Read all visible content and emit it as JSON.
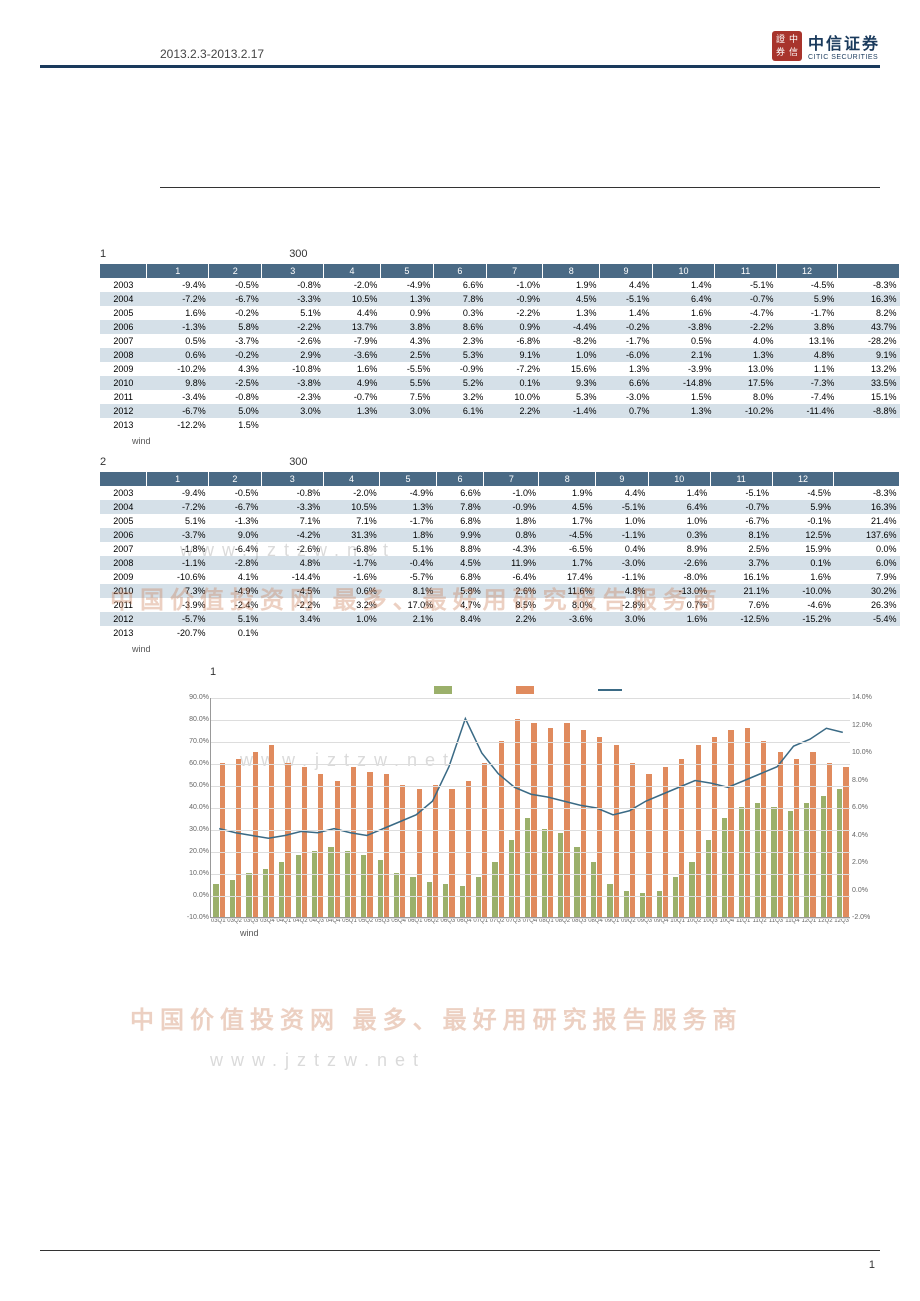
{
  "header": {
    "dateRange": "2013.2.3-2013.2.17",
    "logoCN": "中信证券",
    "logoEN": "CITIC SECURITIES",
    "seal": [
      "證",
      "中",
      "券",
      "信"
    ]
  },
  "table1": {
    "title": "1",
    "subtitle": "300",
    "columns": [
      "",
      "1",
      "2",
      "3",
      "4",
      "5",
      "6",
      "7",
      "8",
      "9",
      "10",
      "11",
      "12",
      ""
    ],
    "rows": [
      [
        "2003",
        "-9.4%",
        "-0.5%",
        "-0.8%",
        "-2.0%",
        "-4.9%",
        "6.6%",
        "-1.0%",
        "1.9%",
        "4.4%",
        "1.4%",
        "-5.1%",
        "-4.5%",
        "-8.3%"
      ],
      [
        "2004",
        "-7.2%",
        "-6.7%",
        "-3.3%",
        "10.5%",
        "1.3%",
        "7.8%",
        "-0.9%",
        "4.5%",
        "-5.1%",
        "6.4%",
        "-0.7%",
        "5.9%",
        "16.3%"
      ],
      [
        "2005",
        "1.6%",
        "-0.2%",
        "5.1%",
        "4.4%",
        "0.9%",
        "0.3%",
        "-2.2%",
        "1.3%",
        "1.4%",
        "1.6%",
        "-4.7%",
        "-1.7%",
        "8.2%"
      ],
      [
        "2006",
        "-1.3%",
        "5.8%",
        "-2.2%",
        "13.7%",
        "3.8%",
        "8.6%",
        "0.9%",
        "-4.4%",
        "-0.2%",
        "-3.8%",
        "-2.2%",
        "3.8%",
        "43.7%"
      ],
      [
        "2007",
        "0.5%",
        "-3.7%",
        "-2.6%",
        "-7.9%",
        "4.3%",
        "2.3%",
        "-6.8%",
        "-8.2%",
        "-1.7%",
        "0.5%",
        "4.0%",
        "13.1%",
        "-28.2%"
      ],
      [
        "2008",
        "0.6%",
        "-0.2%",
        "2.9%",
        "-3.6%",
        "2.5%",
        "5.3%",
        "9.1%",
        "1.0%",
        "-6.0%",
        "2.1%",
        "1.3%",
        "4.8%",
        "9.1%"
      ],
      [
        "2009",
        "-10.2%",
        "4.3%",
        "-10.8%",
        "1.6%",
        "-5.5%",
        "-0.9%",
        "-7.2%",
        "15.6%",
        "1.3%",
        "-3.9%",
        "13.0%",
        "1.1%",
        "13.2%"
      ],
      [
        "2010",
        "9.8%",
        "-2.5%",
        "-3.8%",
        "4.9%",
        "5.5%",
        "5.2%",
        "0.1%",
        "9.3%",
        "6.6%",
        "-14.8%",
        "17.5%",
        "-7.3%",
        "33.5%"
      ],
      [
        "2011",
        "-3.4%",
        "-0.8%",
        "-2.3%",
        "-0.7%",
        "7.5%",
        "3.2%",
        "10.0%",
        "5.3%",
        "-3.0%",
        "1.5%",
        "8.0%",
        "-7.4%",
        "15.1%"
      ],
      [
        "2012",
        "-6.7%",
        "5.0%",
        "3.0%",
        "1.3%",
        "3.0%",
        "6.1%",
        "2.2%",
        "-1.4%",
        "0.7%",
        "1.3%",
        "-10.2%",
        "-11.4%",
        "-8.8%"
      ],
      [
        "2013",
        "-12.2%",
        "1.5%",
        "",
        "",
        "",
        "",
        "",
        "",
        "",
        "",
        "",
        "",
        ""
      ]
    ],
    "source": "wind"
  },
  "table2": {
    "title": "2",
    "subtitle": "300",
    "columns": [
      "",
      "1",
      "2",
      "3",
      "4",
      "5",
      "6",
      "7",
      "8",
      "9",
      "10",
      "11",
      "12",
      ""
    ],
    "rows": [
      [
        "2003",
        "-9.4%",
        "-0.5%",
        "-0.8%",
        "-2.0%",
        "-4.9%",
        "6.6%",
        "-1.0%",
        "1.9%",
        "4.4%",
        "1.4%",
        "-5.1%",
        "-4.5%",
        "-8.3%"
      ],
      [
        "2004",
        "-7.2%",
        "-6.7%",
        "-3.3%",
        "10.5%",
        "1.3%",
        "7.8%",
        "-0.9%",
        "4.5%",
        "-5.1%",
        "6.4%",
        "-0.7%",
        "5.9%",
        "16.3%"
      ],
      [
        "2005",
        "5.1%",
        "-1.3%",
        "7.1%",
        "7.1%",
        "-1.7%",
        "6.8%",
        "1.8%",
        "1.7%",
        "1.0%",
        "1.0%",
        "-6.7%",
        "-0.1%",
        "21.4%"
      ],
      [
        "2006",
        "-3.7%",
        "9.0%",
        "-4.2%",
        "31.3%",
        "1.8%",
        "9.9%",
        "0.8%",
        "-4.5%",
        "-1.1%",
        "0.3%",
        "8.1%",
        "12.5%",
        "137.6%"
      ],
      [
        "2007",
        "-1.8%",
        "-6.4%",
        "-2.6%",
        "-6.8%",
        "5.1%",
        "8.8%",
        "-4.3%",
        "-6.5%",
        "0.4%",
        "8.9%",
        "2.5%",
        "15.9%",
        "0.0%"
      ],
      [
        "2008",
        "-1.1%",
        "-2.8%",
        "4.8%",
        "-1.7%",
        "-0.4%",
        "4.5%",
        "11.9%",
        "1.7%",
        "-3.0%",
        "-2.6%",
        "3.7%",
        "0.1%",
        "6.0%"
      ],
      [
        "2009",
        "-10.6%",
        "4.1%",
        "-14.4%",
        "-1.6%",
        "-5.7%",
        "6.8%",
        "-6.4%",
        "17.4%",
        "-1.1%",
        "-8.0%",
        "16.1%",
        "1.6%",
        "7.9%"
      ],
      [
        "2010",
        "7.3%",
        "-4.9%",
        "-4.5%",
        "0.6%",
        "8.1%",
        "5.8%",
        "2.6%",
        "11.6%",
        "4.8%",
        "-13.0%",
        "21.1%",
        "-10.0%",
        "30.2%"
      ],
      [
        "2011",
        "-3.9%",
        "-2.4%",
        "-2.2%",
        "3.2%",
        "17.0%",
        "4.7%",
        "8.5%",
        "8.0%",
        "-2.8%",
        "0.7%",
        "7.6%",
        "-4.6%",
        "26.3%"
      ],
      [
        "2012",
        "-5.7%",
        "5.1%",
        "3.4%",
        "1.0%",
        "2.1%",
        "8.4%",
        "2.2%",
        "-3.6%",
        "3.0%",
        "1.6%",
        "-12.5%",
        "-15.2%",
        "-5.4%"
      ],
      [
        "2013",
        "-20.7%",
        "0.1%",
        "",
        "",
        "",
        "",
        "",
        "",
        "",
        "",
        "",
        "",
        ""
      ]
    ],
    "source": "wind"
  },
  "watermarks": {
    "cn": "中国价值投资网  最多、最好用研究报告服务商",
    "url": "www.jztzw.net"
  },
  "chart": {
    "title": "1",
    "source": "wind",
    "leftAxis": {
      "min": -10,
      "max": 90,
      "step": 10,
      "suffix": "%"
    },
    "rightAxis": {
      "min": -2,
      "max": 14,
      "step": 2,
      "suffix": "%"
    },
    "colors": {
      "bar1": "#9bb06b",
      "bar2": "#e08b5e",
      "line": "#3a6a85",
      "grid": "#dddddd"
    },
    "legend": [
      "",
      "",
      ""
    ],
    "xLabels": [
      "03Q1",
      "03Q2",
      "03Q3",
      "03Q4",
      "04Q1",
      "04Q2",
      "04Q3",
      "04Q4",
      "05Q1",
      "05Q2",
      "05Q3",
      "05Q4",
      "06Q1",
      "06Q2",
      "06Q3",
      "06Q4",
      "07Q1",
      "07Q2",
      "07Q3",
      "07Q4",
      "08Q1",
      "08Q2",
      "08Q3",
      "08Q4",
      "09Q1",
      "09Q2",
      "09Q3",
      "09Q4",
      "10Q1",
      "10Q2",
      "10Q3",
      "10Q4",
      "11Q1",
      "11Q2",
      "11Q3",
      "11Q4",
      "12Q1",
      "12Q2",
      "12Q3"
    ],
    "bar1": [
      5,
      7,
      10,
      12,
      15,
      18,
      20,
      22,
      20,
      18,
      16,
      10,
      8,
      6,
      5,
      4,
      8,
      15,
      25,
      35,
      30,
      28,
      22,
      15,
      5,
      2,
      1,
      2,
      8,
      15,
      25,
      35,
      40,
      42,
      40,
      38,
      42,
      45,
      48
    ],
    "bar2": [
      60,
      62,
      65,
      68,
      60,
      58,
      55,
      52,
      58,
      56,
      55,
      50,
      48,
      50,
      48,
      52,
      60,
      70,
      80,
      78,
      76,
      78,
      75,
      72,
      68,
      60,
      55,
      58,
      62,
      68,
      72,
      75,
      76,
      70,
      65,
      62,
      65,
      60,
      58
    ],
    "line": [
      4.5,
      4.2,
      4.0,
      3.8,
      4.0,
      4.3,
      4.2,
      4.5,
      4.2,
      4.0,
      4.5,
      5.0,
      5.5,
      6.5,
      9.0,
      12.5,
      10.0,
      8.5,
      7.5,
      7.0,
      6.8,
      6.5,
      6.2,
      6.0,
      5.5,
      5.8,
      6.5,
      7.0,
      7.5,
      8.0,
      7.8,
      7.5,
      8.0,
      8.5,
      9.0,
      10.5,
      11.0,
      11.8,
      11.5
    ]
  },
  "pageNumber": "1"
}
